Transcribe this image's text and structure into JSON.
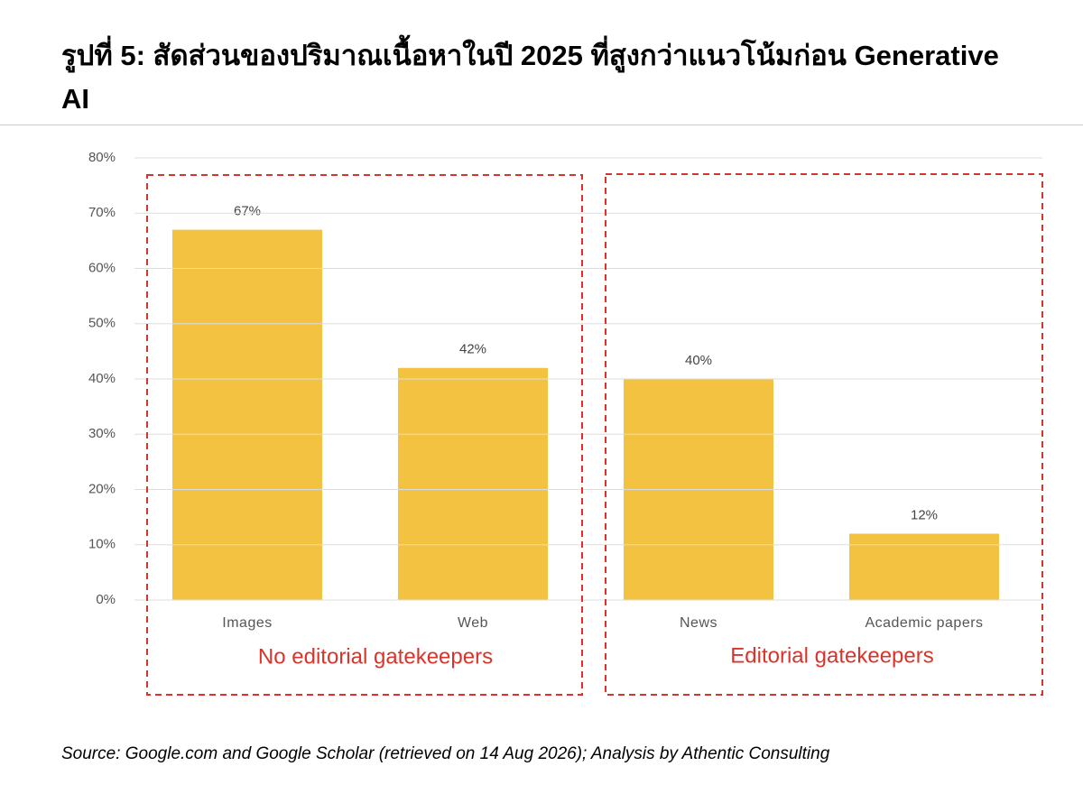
{
  "chart_data": {
    "type": "bar",
    "title": "รูปที่ 5: สัดส่วนของปริมาณเนื้อหาในปี 2025 ที่สูงกว่าแนวโน้มก่อน Generative AI",
    "categories": [
      "Images",
      "Web",
      "News",
      "Academic papers"
    ],
    "values": [
      67,
      42,
      40,
      12
    ],
    "value_labels": [
      "67%",
      "42%",
      "40%",
      "12%"
    ],
    "color": "#f2c240",
    "ylim": [
      0,
      80
    ],
    "yticks": [
      {
        "value": 0,
        "label": "0%"
      },
      {
        "value": 10,
        "label": "10%"
      },
      {
        "value": 20,
        "label": "20%"
      },
      {
        "value": 30,
        "label": "30%"
      },
      {
        "value": 40,
        "label": "40%"
      },
      {
        "value": 50,
        "label": "50%"
      },
      {
        "value": 60,
        "label": "60%"
      },
      {
        "value": 70,
        "label": "70%"
      },
      {
        "value": 80,
        "label": "80%"
      }
    ],
    "grid": true,
    "annotations": [
      "No editorial gatekeepers",
      "Editorial gatekeepers"
    ],
    "source": "Source: Google.com and Google Scholar (retrieved on 14 Aug 2026); Analysis by Athentic Consulting"
  }
}
